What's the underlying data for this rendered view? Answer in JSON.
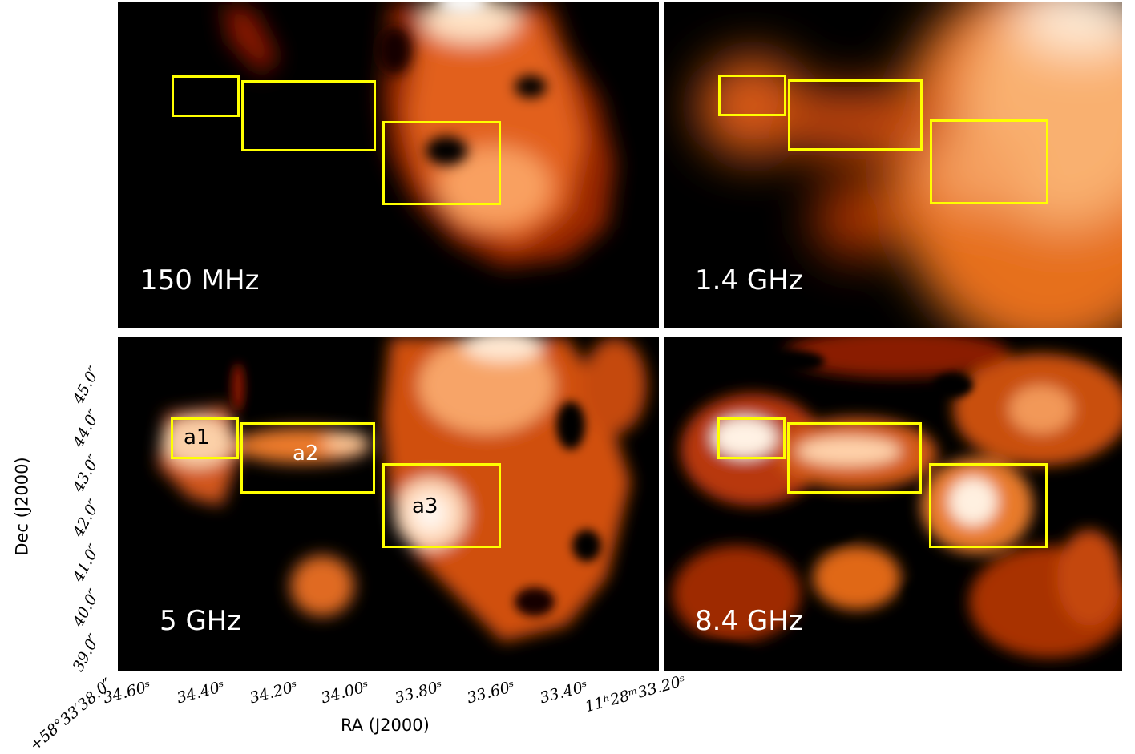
{
  "panels": {
    "p150": {
      "label": "150 MHz"
    },
    "p14": {
      "label": "1.4 GHz"
    },
    "p5": {
      "label": "5 GHz"
    },
    "p84": {
      "label": "8.4 GHz"
    }
  },
  "regions": {
    "a1": "a1",
    "a2": "a2",
    "a3": "a3"
  },
  "axes": {
    "xlabel": "RA (J2000)",
    "ylabel": "Dec (J2000)",
    "xticks": [
      "34.60ˢ",
      "34.40ˢ",
      "34.20ˢ",
      "34.00ˢ",
      "33.80ˢ",
      "33.60ˢ",
      "33.40ˢ",
      "11ʰ28ᵐ33.20ˢ"
    ],
    "yticks": [
      "+58°33′38.0″",
      "39.0″",
      "40.0″",
      "41.0″",
      "42.0″",
      "43.0″",
      "44.0″",
      "45.0″"
    ]
  },
  "colors": {
    "box": "#ffff00",
    "background": "#000000",
    "emission_hot": "#fff6ea",
    "emission_mid": "#f07a28",
    "emission_low": "#8a1a00"
  }
}
